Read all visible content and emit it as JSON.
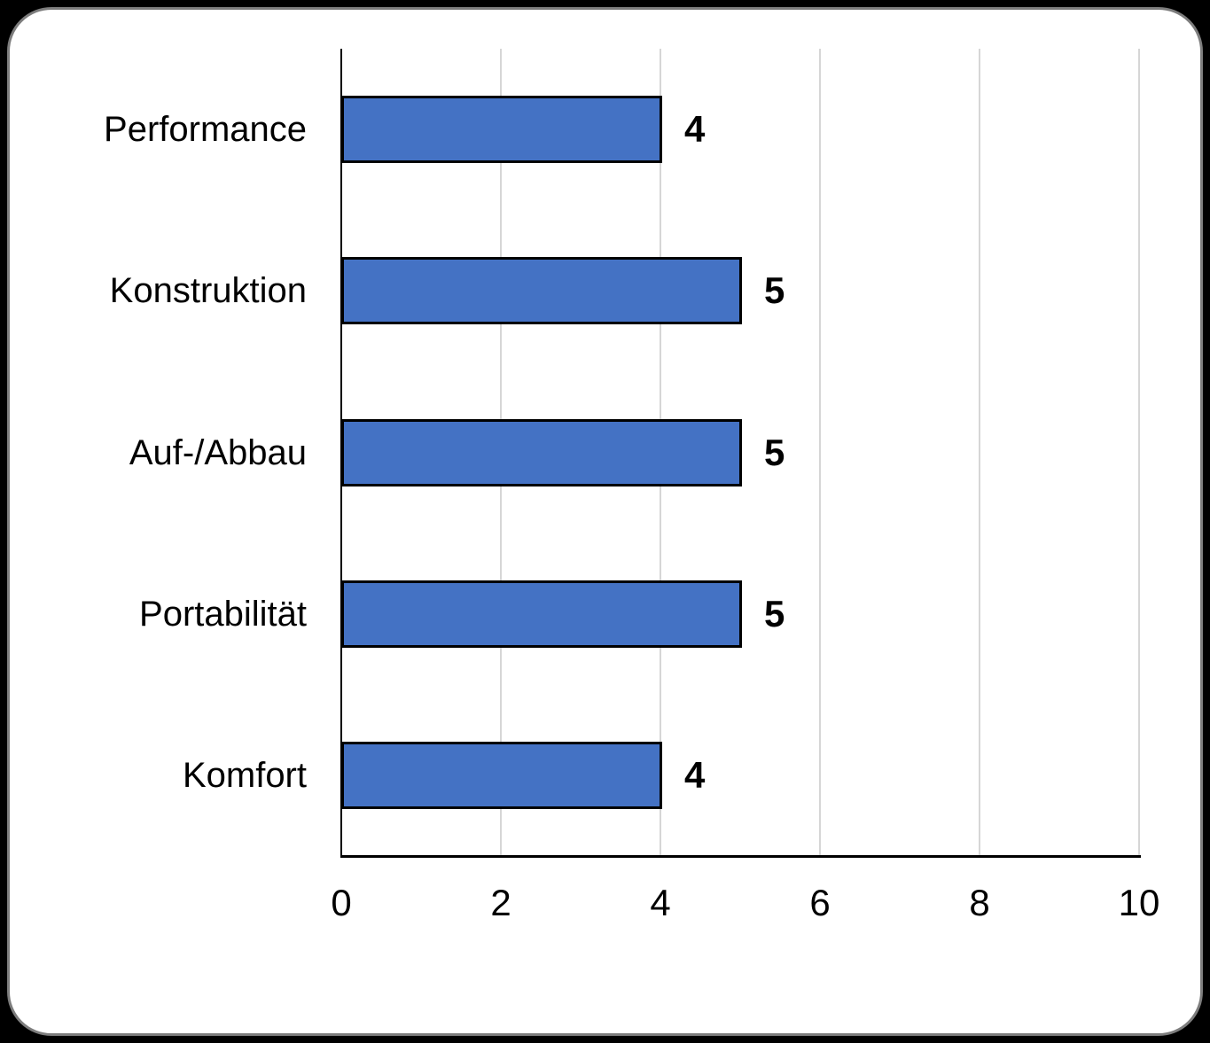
{
  "chart_data": {
    "type": "bar",
    "orientation": "horizontal",
    "categories": [
      "Performance",
      "Konstruktion",
      "Auf-/Abbau",
      "Portabilität",
      "Komfort"
    ],
    "values": [
      4,
      5,
      5,
      5,
      4
    ],
    "data_labels": [
      "4",
      "5",
      "5",
      "5",
      "4"
    ],
    "xlim": [
      0,
      10
    ],
    "x_ticks": [
      0,
      2,
      4,
      6,
      8,
      10
    ],
    "grid": "vertical-on",
    "legend": "none",
    "bar_color": "#4472C4",
    "bar_border_color": "#000000",
    "gridline_color": "#D6D6D6",
    "axis_color": "#000000",
    "label_color": "#000000",
    "background_color": "#FFFFFF",
    "frame_color": "#000000"
  }
}
